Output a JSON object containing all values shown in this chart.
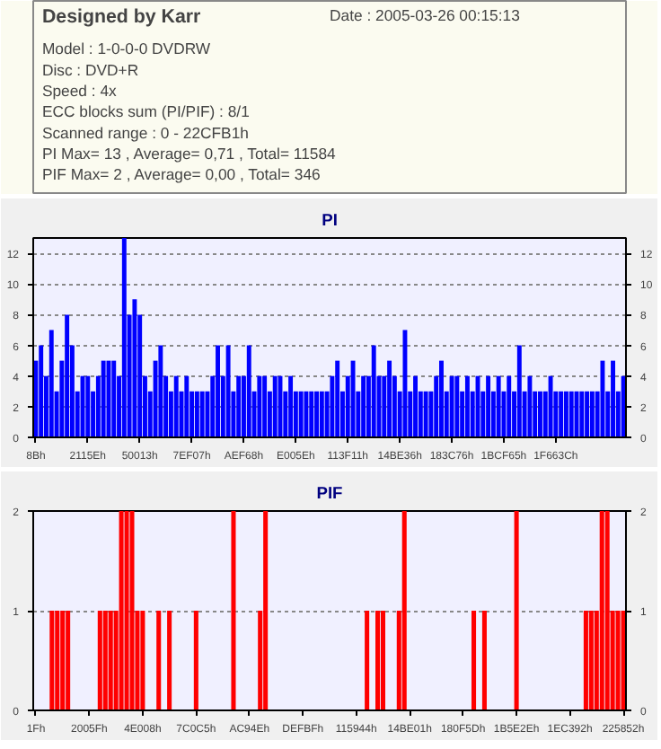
{
  "chart_data": [
    {
      "type": "other",
      "title": "Designed by Karr",
      "annotations": [
        "Date : 2005-03-26 00:15:13",
        "Model : 1-0-0-0 DVDRW",
        "Disc : DVD+R",
        "Speed : 4x",
        "ECC blocks sum (PI/PIF) : 8/1",
        "Scanned range : 0 - 22CFB1h",
        "PI Max= 13 , Average= 0,71 , Total= 11584",
        "PIF Max= 2 , Average= 0,00 , Total= 346"
      ]
    },
    {
      "type": "bar",
      "title": "PI",
      "color": "#0000ff",
      "ylim": [
        0,
        13
      ],
      "yticks": [
        0,
        2,
        4,
        6,
        8,
        10,
        12
      ],
      "y2lim": [
        0,
        13
      ],
      "y2ticks": [
        0,
        2,
        4,
        6,
        8,
        10,
        12
      ],
      "grid": "y",
      "categories": [
        "8Bh",
        null,
        null,
        null,
        null,
        null,
        null,
        null,
        null,
        null,
        "2115Eh",
        null,
        null,
        null,
        null,
        null,
        null,
        null,
        null,
        null,
        "50013h",
        null,
        null,
        null,
        null,
        null,
        null,
        null,
        null,
        null,
        "7EF07h",
        null,
        null,
        null,
        null,
        null,
        null,
        null,
        null,
        null,
        "AEF68h",
        null,
        null,
        null,
        null,
        null,
        null,
        null,
        null,
        null,
        "E005Eh",
        null,
        null,
        null,
        null,
        null,
        null,
        null,
        null,
        null,
        "113F11h",
        null,
        null,
        null,
        null,
        null,
        null,
        null,
        null,
        null,
        "14BE36h",
        null,
        null,
        null,
        null,
        null,
        null,
        null,
        null,
        null,
        "183C76h",
        null,
        null,
        null,
        null,
        null,
        null,
        null,
        null,
        null,
        "1BCF65h",
        null,
        null,
        null,
        null,
        null,
        null,
        null,
        null,
        null,
        "1F663Ch",
        null,
        null,
        null,
        null,
        null,
        null,
        null,
        null,
        null,
        null,
        null,
        null,
        null
      ],
      "values": [
        5,
        6,
        4,
        7,
        3,
        5,
        8,
        6,
        3,
        4,
        4,
        3,
        4,
        5,
        5,
        5,
        4,
        13,
        8,
        9,
        8,
        4,
        3,
        5,
        6,
        4,
        3,
        4,
        3,
        4,
        3,
        3,
        3,
        3,
        4,
        6,
        4,
        6,
        3,
        4,
        4,
        6,
        3,
        4,
        4,
        3,
        4,
        4,
        3,
        4,
        3,
        3,
        3,
        3,
        3,
        3,
        3,
        4,
        5,
        3,
        4,
        5,
        3,
        4,
        4,
        6,
        4,
        4,
        5,
        4,
        3,
        7,
        3,
        4,
        3,
        3,
        3,
        4,
        5,
        3,
        4,
        4,
        3,
        4,
        3,
        4,
        3,
        4,
        3,
        4,
        3,
        4,
        3,
        6,
        3,
        4,
        3,
        3,
        3,
        4,
        3,
        3,
        3,
        3,
        3,
        3,
        3,
        3,
        3,
        5,
        3,
        5,
        3,
        4
      ]
    },
    {
      "type": "bar",
      "title": "PIF",
      "color": "#ff0000",
      "ylim": [
        0,
        2
      ],
      "yticks": [
        0,
        1,
        2
      ],
      "y2lim": [
        0,
        2
      ],
      "y2ticks": [
        0,
        1,
        2
      ],
      "grid": "y",
      "categories": [
        "1Fh",
        null,
        null,
        null,
        null,
        null,
        null,
        null,
        null,
        null,
        "2005Fh",
        null,
        null,
        null,
        null,
        null,
        null,
        null,
        null,
        null,
        "4E008h",
        null,
        null,
        null,
        null,
        null,
        null,
        null,
        null,
        null,
        "7C0C5h",
        null,
        null,
        null,
        null,
        null,
        null,
        null,
        null,
        null,
        "AC94Eh",
        null,
        null,
        null,
        null,
        null,
        null,
        null,
        null,
        null,
        "DEFBFh",
        null,
        null,
        null,
        null,
        null,
        null,
        null,
        null,
        null,
        "115944h",
        null,
        null,
        null,
        null,
        null,
        null,
        null,
        null,
        null,
        "14BE01h",
        null,
        null,
        null,
        null,
        null,
        null,
        null,
        null,
        null,
        "180F5Dh",
        null,
        null,
        null,
        null,
        null,
        null,
        null,
        null,
        null,
        "1B5E2Eh",
        null,
        null,
        null,
        null,
        null,
        null,
        null,
        null,
        null,
        "1EC392h",
        null,
        null,
        null,
        null,
        null,
        null,
        null,
        null,
        null,
        "225852h"
      ],
      "values": [
        0,
        0,
        0,
        1,
        1,
        1,
        1,
        0,
        0,
        0,
        0,
        0,
        1,
        1,
        1,
        1,
        2,
        2,
        2,
        1,
        1,
        0,
        0,
        1,
        0,
        1,
        0,
        0,
        0,
        0,
        1,
        0,
        0,
        0,
        0,
        0,
        0,
        2,
        0,
        0,
        0,
        0,
        1,
        2,
        0,
        0,
        0,
        0,
        0,
        0,
        0,
        0,
        0,
        0,
        0,
        0,
        0,
        0,
        0,
        0,
        0,
        0,
        1,
        0,
        1,
        1,
        0,
        0,
        1,
        2,
        0,
        0,
        0,
        0,
        0,
        0,
        0,
        0,
        0,
        0,
        0,
        0,
        1,
        0,
        1,
        0,
        0,
        0,
        0,
        0,
        2,
        0,
        0,
        0,
        0,
        0,
        0,
        0,
        0,
        0,
        0,
        0,
        0,
        1,
        1,
        1,
        2,
        2,
        1,
        1,
        1
      ]
    }
  ]
}
